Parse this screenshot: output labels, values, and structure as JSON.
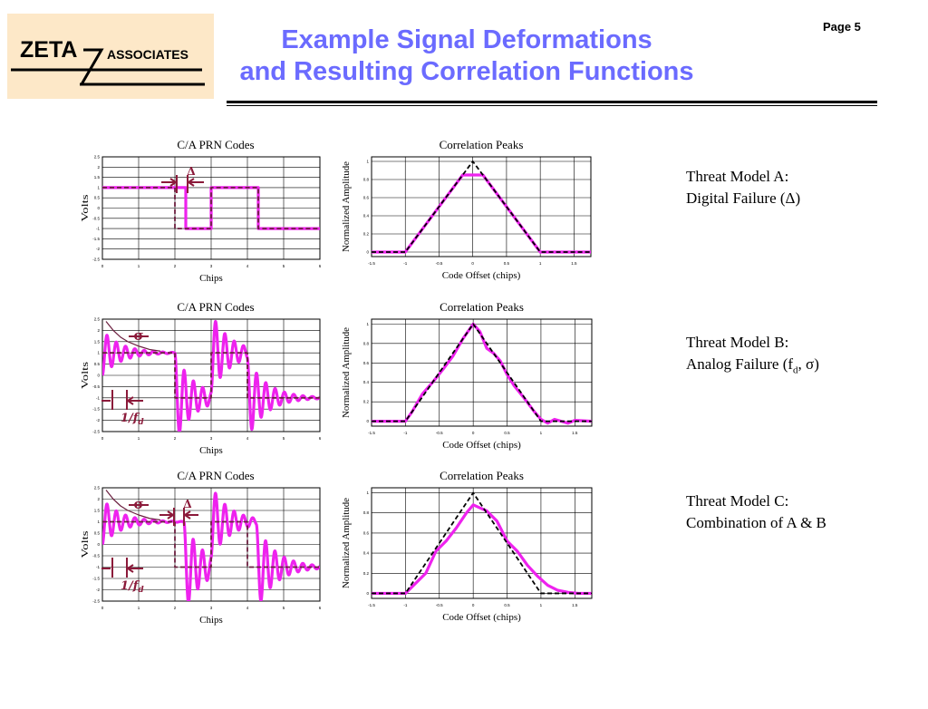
{
  "header": {
    "logo_left": "ZETA",
    "logo_right": "ASSOCIATES",
    "title_line1": "Example Signal Deformations",
    "title_line2": "and Resulting Correlation Functions",
    "page": "Page 5"
  },
  "threats": [
    {
      "line1": "Threat Model A:",
      "line2": "Digital Failure (Δ)"
    },
    {
      "line1": "Threat Model B:",
      "line2_pre": "Analog Failure (f",
      "line2_sub": "d",
      "line2_post": ", σ)"
    },
    {
      "line1": "Threat Model C:",
      "line2": "Combination of A & B"
    }
  ],
  "colors": {
    "signal": "#ee22ee",
    "reference": "#6b1f3f",
    "marker": "#8b1a3a",
    "title": "#6b6bff"
  },
  "annotations": {
    "delta": "Δ",
    "sigma": "σ",
    "fd": "1/f",
    "fd_sub": "d"
  },
  "chart_data": [
    {
      "type": "line",
      "row": 0,
      "title": "C/A PRN Codes",
      "xlabel": "Chips",
      "ylabel": "Volts",
      "xlim": [
        0,
        6
      ],
      "ylim": [
        -2.5,
        2.5
      ],
      "xticks": [
        0,
        1,
        2,
        3,
        4,
        5,
        6
      ],
      "yticks": [
        -2.5,
        -2,
        -1.5,
        -1,
        -0.5,
        0,
        0.5,
        1,
        1.5,
        2,
        2.5
      ],
      "series": [
        {
          "role": "ideal",
          "style": "dashed",
          "x": [
            0,
            2,
            2,
            3,
            3,
            4.3,
            4.3,
            6
          ],
          "y": [
            1,
            1,
            -1,
            -1,
            1,
            1,
            -1,
            -1
          ]
        },
        {
          "role": "deformed",
          "style": "solid",
          "x": [
            0,
            2.3,
            2.3,
            3,
            3,
            4.3,
            4.3,
            6
          ],
          "y": [
            1,
            1,
            -1,
            -1,
            1,
            1,
            -1,
            -1
          ]
        }
      ]
    },
    {
      "type": "line",
      "row": 0,
      "title": "Correlation Peaks",
      "xlabel": "Code Offset (chips)",
      "ylabel": "Normalized Amplitude",
      "xlim": [
        -1.5,
        1.75
      ],
      "ylim": [
        -0.05,
        1.05
      ],
      "xticks": [
        -1.5,
        -1,
        -0.5,
        0,
        0.5,
        1,
        1.5
      ],
      "yticks": [
        0,
        0.2,
        0.4,
        0.6,
        0.8,
        1
      ],
      "series": [
        {
          "role": "ideal",
          "style": "dashed",
          "x": [
            -1.5,
            -1,
            0,
            1,
            1.75
          ],
          "y": [
            0,
            0,
            1,
            0,
            0
          ]
        },
        {
          "role": "deformed",
          "style": "solid",
          "x": [
            -1.5,
            -1,
            -0.15,
            0.15,
            1,
            1.75
          ],
          "y": [
            0,
            0,
            0.85,
            0.85,
            0,
            0
          ]
        }
      ]
    },
    {
      "type": "line",
      "row": 1,
      "title": "C/A PRN Codes",
      "xlabel": "Chips",
      "ylabel": "Volts",
      "xlim": [
        0,
        6
      ],
      "ylim": [
        -2.5,
        2.5
      ],
      "xticks": [
        0,
        1,
        2,
        3,
        4,
        5,
        6
      ],
      "yticks": [
        -2.5,
        -2,
        -1.5,
        -1,
        -0.5,
        0,
        0.5,
        1,
        1.5,
        2,
        2.5
      ],
      "ringing": {
        "freq_per_chip": 3.9,
        "decay": 1.9,
        "amplitude": 1.0
      },
      "series": [
        {
          "role": "ideal",
          "style": "dashed",
          "x": [
            0,
            2,
            2,
            3,
            3,
            4,
            4,
            6
          ],
          "y": [
            1,
            1,
            -1,
            -1,
            1,
            1,
            -1,
            -1
          ]
        },
        {
          "role": "deformed",
          "style": "solid",
          "steps": [
            [
              0,
              1
            ],
            [
              2,
              -1
            ],
            [
              3,
              1
            ],
            [
              4,
              -1
            ]
          ],
          "xmax": 6
        },
        {
          "role": "envelope",
          "style": "solid",
          "x": [
            0.1,
            0.3,
            0.5,
            0.7,
            1.0,
            1.3,
            1.6
          ],
          "y": [
            2.4,
            2.0,
            1.7,
            1.5,
            1.3,
            1.15,
            1.08
          ]
        }
      ]
    },
    {
      "type": "line",
      "row": 1,
      "title": "Correlation Peaks",
      "xlabel": "Code Offset (chips)",
      "ylabel": "Normalized Amplitude",
      "xlim": [
        -1.5,
        1.75
      ],
      "ylim": [
        -0.05,
        1.05
      ],
      "xticks": [
        -1.5,
        -1,
        -0.5,
        0,
        0.5,
        1,
        1.5
      ],
      "yticks": [
        0,
        0.2,
        0.4,
        0.6,
        0.8,
        1
      ],
      "series": [
        {
          "role": "ideal",
          "style": "dashed",
          "x": [
            -1.5,
            -1,
            0,
            1,
            1.75
          ],
          "y": [
            0,
            0,
            1,
            0,
            0
          ]
        },
        {
          "role": "deformed",
          "style": "solid",
          "x": [
            -1.5,
            -1,
            -0.9,
            -0.75,
            -0.6,
            -0.45,
            -0.3,
            -0.15,
            0,
            0.1,
            0.2,
            0.3,
            0.4,
            0.5,
            0.6,
            0.75,
            0.9,
            1.0,
            1.1,
            1.2,
            1.3,
            1.4,
            1.5,
            1.75
          ],
          "y": [
            0,
            0,
            0.1,
            0.28,
            0.4,
            0.53,
            0.67,
            0.85,
            1.0,
            0.92,
            0.75,
            0.7,
            0.62,
            0.48,
            0.37,
            0.24,
            0.1,
            0.02,
            -0.02,
            0.02,
            0.0,
            -0.02,
            0.01,
            0
          ]
        }
      ]
    },
    {
      "type": "line",
      "row": 2,
      "title": "C/A PRN Codes",
      "xlabel": "Chips",
      "ylabel": "Volts",
      "xlim": [
        0,
        6
      ],
      "ylim": [
        -2.5,
        2.5
      ],
      "xticks": [
        0,
        1,
        2,
        3,
        4,
        5,
        6
      ],
      "yticks": [
        -2.5,
        -2,
        -1.5,
        -1,
        -0.5,
        0,
        0.5,
        1,
        1.5,
        2,
        2.5
      ],
      "ringing": {
        "freq_per_chip": 3.9,
        "decay": 1.9,
        "amplitude": 1.0
      },
      "series": [
        {
          "role": "ideal",
          "style": "dashed",
          "x": [
            0,
            2,
            2,
            3,
            3,
            4,
            4,
            6
          ],
          "y": [
            1,
            1,
            -1,
            -1,
            1,
            1,
            -1,
            -1
          ]
        },
        {
          "role": "deformed",
          "style": "solid",
          "steps": [
            [
              0,
              1
            ],
            [
              2.25,
              -1
            ],
            [
              3,
              1
            ],
            [
              4.25,
              -1
            ]
          ],
          "xmax": 6
        },
        {
          "role": "envelope",
          "style": "solid",
          "x": [
            0.1,
            0.3,
            0.5,
            0.7,
            1.0,
            1.3,
            1.6
          ],
          "y": [
            2.4,
            2.0,
            1.7,
            1.5,
            1.3,
            1.15,
            1.08
          ]
        }
      ]
    },
    {
      "type": "line",
      "row": 2,
      "title": "Correlation Peaks",
      "xlabel": "Code Offset (chips)",
      "ylabel": "Normalized Amplitude",
      "xlim": [
        -1.5,
        1.75
      ],
      "ylim": [
        -0.05,
        1.05
      ],
      "xticks": [
        -1.5,
        -1,
        -0.5,
        0,
        0.5,
        1,
        1.5
      ],
      "yticks": [
        0,
        0.2,
        0.4,
        0.6,
        0.8,
        1
      ],
      "series": [
        {
          "role": "ideal",
          "style": "dashed",
          "x": [
            -1.5,
            -1,
            0,
            1,
            1.75
          ],
          "y": [
            0,
            0,
            1,
            0,
            0
          ]
        },
        {
          "role": "deformed",
          "style": "solid",
          "x": [
            -1.5,
            -1,
            -0.85,
            -0.7,
            -0.55,
            -0.4,
            -0.25,
            -0.1,
            0,
            0.1,
            0.2,
            0.35,
            0.5,
            0.65,
            0.8,
            0.95,
            1.1,
            1.25,
            1.4,
            1.55,
            1.75
          ],
          "y": [
            0,
            0,
            0.1,
            0.2,
            0.42,
            0.52,
            0.65,
            0.8,
            0.88,
            0.85,
            0.82,
            0.72,
            0.52,
            0.42,
            0.28,
            0.17,
            0.08,
            0.03,
            0.01,
            0.0,
            0
          ]
        }
      ]
    }
  ]
}
